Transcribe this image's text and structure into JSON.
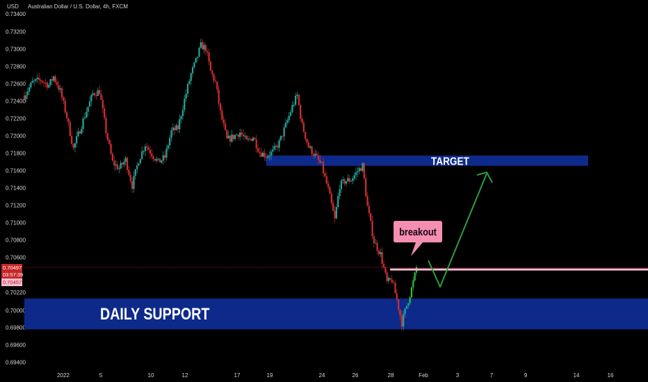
{
  "header": {
    "currency_tag": "USD",
    "title": "Australian Dollar / U.S. Dollar, 4h, FXCM"
  },
  "colors": {
    "background": "#000000",
    "up": "#26a69a",
    "up_bright": "#2fbf3f",
    "down": "#d32f2f",
    "zone": "#0d2a8a",
    "breakout_line": "#f8bbd0",
    "arrow": "#2e9e3e",
    "callout": "#f48fb1",
    "text": "#d6d6d6"
  },
  "chart_data": {
    "type": "candlestick",
    "symbol": "AUDUSD",
    "timeframe": "4h",
    "ylim": [
      0.6938,
      0.7345
    ],
    "y_ticks": [
      "0.73400",
      "0.73200",
      "0.73000",
      "0.72800",
      "0.72600",
      "0.72400",
      "0.72200",
      "0.72000",
      "0.71800",
      "0.71600",
      "0.71400",
      "0.71200",
      "0.71000",
      "0.70800",
      "0.70600",
      "0.70220",
      "0.70000",
      "0.69800",
      "0.69600",
      "0.69400"
    ],
    "x_ticks": [
      "2022",
      "5",
      "10",
      "12",
      "17",
      "19",
      "24",
      "26",
      "28",
      "Feb",
      "3",
      "7",
      "9",
      "14",
      "16"
    ],
    "close_points": [
      [
        0,
        0.725
      ],
      [
        5,
        0.7265
      ],
      [
        10,
        0.7268
      ],
      [
        15,
        0.7262
      ],
      [
        18,
        0.7272
      ],
      [
        22,
        0.7255
      ],
      [
        26,
        0.7225
      ],
      [
        30,
        0.7188
      ],
      [
        34,
        0.721
      ],
      [
        38,
        0.7232
      ],
      [
        42,
        0.7252
      ],
      [
        46,
        0.7255
      ],
      [
        50,
        0.7208
      ],
      [
        54,
        0.7172
      ],
      [
        58,
        0.7165
      ],
      [
        62,
        0.7175
      ],
      [
        66,
        0.7145
      ],
      [
        70,
        0.7175
      ],
      [
        74,
        0.7193
      ],
      [
        78,
        0.7182
      ],
      [
        82,
        0.7172
      ],
      [
        86,
        0.7178
      ],
      [
        90,
        0.7208
      ],
      [
        94,
        0.7212
      ],
      [
        98,
        0.7245
      ],
      [
        102,
        0.7275
      ],
      [
        105,
        0.729
      ],
      [
        108,
        0.7308
      ],
      [
        111,
        0.7305
      ],
      [
        114,
        0.7278
      ],
      [
        117,
        0.7265
      ],
      [
        120,
        0.723
      ],
      [
        124,
        0.7198
      ],
      [
        128,
        0.7202
      ],
      [
        132,
        0.7207
      ],
      [
        136,
        0.7196
      ],
      [
        140,
        0.7202
      ],
      [
        144,
        0.7184
      ],
      [
        148,
        0.718
      ],
      [
        152,
        0.7184
      ],
      [
        156,
        0.7195
      ],
      [
        160,
        0.7215
      ],
      [
        164,
        0.7237
      ],
      [
        167,
        0.725
      ],
      [
        170,
        0.7215
      ],
      [
        174,
        0.719
      ],
      [
        178,
        0.718
      ],
      [
        182,
        0.7168
      ],
      [
        186,
        0.714
      ],
      [
        190,
        0.7105
      ],
      [
        193,
        0.7145
      ],
      [
        196,
        0.715
      ],
      [
        200,
        0.7152
      ],
      [
        204,
        0.7162
      ],
      [
        207,
        0.7168
      ],
      [
        210,
        0.712
      ],
      [
        214,
        0.708
      ],
      [
        218,
        0.7065
      ],
      [
        222,
        0.7032
      ],
      [
        225,
        0.7035
      ],
      [
        228,
        0.7012
      ],
      [
        231,
        0.6985
      ],
      [
        234,
        0.7005
      ],
      [
        237,
        0.7025
      ],
      [
        240,
        0.7048
      ]
    ],
    "zones": [
      {
        "label": "TARGET",
        "from": 0.7168,
        "to": 0.718,
        "x_start": 383,
        "x_end": 846
      },
      {
        "label": "DAILY SUPPORT",
        "from": 0.69775,
        "to": 0.70135,
        "x_start": 35,
        "x_end": 932
      }
    ],
    "levels": {
      "current_price": 0.70497,
      "breakout_level": 0.70457
    },
    "annotations": {
      "callout": "breakout",
      "projection": "pullback then rally to target"
    }
  },
  "price_badges": {
    "current_price": "0.70497",
    "countdown": "03:57:39",
    "breakout_price": "0.70457"
  }
}
